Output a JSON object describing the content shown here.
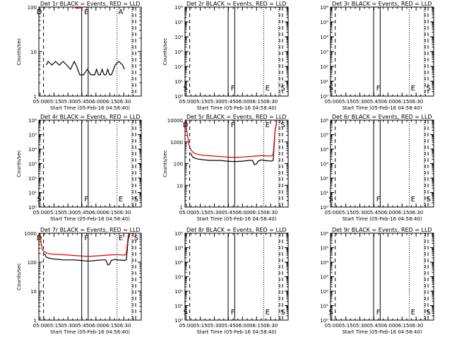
{
  "figure": {
    "time_labels": [
      "05:00",
      "05:15",
      "05:30",
      "05:45",
      "06:00",
      "06:15",
      "06:30"
    ],
    "xlabel": "Start Time (05-Feb-16 04:58:40)",
    "ylabel": "Counts/sec",
    "event_marker_letters": [
      "D",
      "F",
      "E",
      "S"
    ]
  },
  "chart_data": [
    {
      "type": "line",
      "id": "det1r",
      "title": "Det 1r BLACK = Events, RED = LLD",
      "ylabel": "Counts/sec",
      "xlabel": "Start Time (05-Feb-16 04:58:40)",
      "yscale": "log",
      "ylim": [
        1,
        100
      ],
      "xlim_minutes_after_start": [
        0,
        98
      ],
      "y_ticks": [
        "1",
        "10",
        "100"
      ],
      "marker_letters": [
        "D",
        "E",
        "A"
      ],
      "series": [
        {
          "name": "Events",
          "color": "#000000",
          "x": [
            8,
            10,
            14,
            18,
            22,
            26,
            30,
            34,
            38,
            40,
            44,
            48,
            52,
            56,
            60,
            62,
            64,
            66,
            68,
            70,
            72,
            74,
            76,
            78,
            82,
            86,
            90,
            92
          ],
          "y": [
            5,
            6,
            5,
            6,
            5,
            6,
            5,
            4,
            6,
            5,
            3,
            3,
            4,
            3,
            3,
            4,
            3,
            3,
            4,
            3,
            3,
            4,
            3,
            3,
            5,
            6,
            5,
            4
          ]
        },
        {
          "name": "LLD",
          "color": "#dd0000",
          "x": [
            38,
            40,
            44,
            48
          ],
          "y": [
            100,
            95,
            95,
            100
          ]
        }
      ]
    },
    {
      "type": "line",
      "id": "det2r",
      "title": "Det 2r BLACK = Events, RED = LLD",
      "ylabel": "Counts/sec",
      "xlabel": "Start Time (05-Feb-16 04:58:40)",
      "yscale": "log",
      "ylim": [
        1,
        1000000
      ],
      "y_ticks": [
        "10⁰",
        "10¹",
        "10²",
        "10³",
        "10⁴",
        "10⁵",
        "10⁶"
      ],
      "marker_letters": [
        "S",
        "F",
        "E",
        "S"
      ],
      "series": []
    },
    {
      "type": "line",
      "id": "det3r",
      "title": "Det 3r BLACK = Events, RED = LLD",
      "ylabel": "",
      "xlabel": "Start Time (05-Feb-16 04:58:40)",
      "yscale": "log",
      "ylim": [
        1,
        1000000
      ],
      "y_ticks": [
        "10⁰",
        "10¹",
        "10²",
        "10³",
        "10⁴",
        "10⁵",
        "10⁶"
      ],
      "marker_letters": [
        "S",
        "F",
        "E",
        "S"
      ],
      "series": []
    },
    {
      "type": "line",
      "id": "det4r",
      "title": "Det 4r BLACK = Events, RED = LLD",
      "ylabel": "Counts/sec",
      "xlabel": "Start Time (05-Feb-16 04:58:40)",
      "yscale": "log",
      "ylim": [
        1,
        1000000
      ],
      "y_ticks": [
        "10⁰",
        "10¹",
        "10²",
        "10³",
        "10⁴",
        "10⁵",
        "10⁶"
      ],
      "marker_letters": [
        "S",
        "F",
        "E",
        "S"
      ],
      "series": []
    },
    {
      "type": "line",
      "id": "det5r",
      "title": "Det 5r BLACK = Events, RED = LLD",
      "ylabel": "Counts/sec",
      "xlabel": "Start Time (05-Feb-16 04:58:40)",
      "yscale": "log",
      "ylim": [
        1,
        10000
      ],
      "y_ticks": [
        "1",
        "10",
        "100",
        "1000",
        "10000"
      ],
      "marker_letters": [
        "D",
        "F",
        "E",
        "S"
      ],
      "series": [
        {
          "name": "Events",
          "color": "#000000",
          "x": [
            6,
            8,
            10,
            14,
            20,
            26,
            32,
            38,
            44,
            50,
            56,
            62,
            68,
            72,
            74,
            76,
            78,
            80,
            82,
            84,
            88,
            92,
            94,
            96,
            98
          ],
          "y": [
            300,
            200,
            180,
            160,
            150,
            140,
            140,
            140,
            130,
            125,
            125,
            130,
            140,
            140,
            90,
            95,
            130,
            140,
            150,
            140,
            135,
            130,
            140,
            3000,
            10000
          ]
        },
        {
          "name": "LLD",
          "color": "#dd0000",
          "x": [
            0,
            2,
            4,
            6,
            8,
            10,
            14,
            20,
            26,
            32,
            38,
            44,
            50,
            56,
            62,
            68,
            74,
            80,
            84,
            88,
            92,
            94,
            96,
            98
          ],
          "y": [
            10000,
            3000,
            800,
            450,
            350,
            300,
            260,
            240,
            230,
            220,
            210,
            200,
            195,
            195,
            200,
            210,
            220,
            230,
            230,
            225,
            220,
            260,
            3000,
            10000
          ]
        }
      ]
    },
    {
      "type": "line",
      "id": "det6r",
      "title": "Det 6r BLACK = Events, RED = LLD",
      "ylabel": "",
      "xlabel": "Start Time (05-Feb-16 04:58:40)",
      "yscale": "log",
      "ylim": [
        1,
        1000000
      ],
      "y_ticks": [
        "10⁰",
        "10¹",
        "10²",
        "10³",
        "10⁴",
        "10⁵",
        "10⁶"
      ],
      "marker_letters": [
        "S",
        "F",
        "E",
        "S"
      ],
      "series": []
    },
    {
      "type": "line",
      "id": "det7r",
      "title": "Det 7r BLACK = Events, RED = LLD",
      "ylabel": "Counts/sec",
      "xlabel": "Start Time (05-Feb-16 04:58:40)",
      "yscale": "log",
      "ylim": [
        1,
        1000
      ],
      "y_ticks": [
        "1",
        "10",
        "100",
        "1000"
      ],
      "marker_letters": [
        "D",
        "F",
        "E",
        "S"
      ],
      "series": [
        {
          "name": "Events",
          "color": "#000000",
          "x": [
            6,
            8,
            10,
            14,
            20,
            26,
            32,
            38,
            44,
            50,
            56,
            62,
            68,
            72,
            74,
            76,
            78,
            80,
            82,
            84,
            88,
            92,
            94,
            96,
            98
          ],
          "y": [
            200,
            150,
            140,
            130,
            125,
            120,
            120,
            120,
            115,
            110,
            110,
            115,
            120,
            120,
            80,
            85,
            115,
            120,
            125,
            120,
            118,
            115,
            120,
            600,
            1000
          ]
        },
        {
          "name": "LLD",
          "color": "#dd0000",
          "x": [
            0,
            1,
            2,
            3,
            4,
            6,
            8,
            10,
            14,
            20,
            26,
            32,
            38,
            44,
            50,
            56,
            62,
            68,
            74,
            80,
            84,
            88,
            92,
            94,
            96,
            98
          ],
          "y": [
            1000,
            900,
            600,
            350,
            260,
            230,
            210,
            200,
            190,
            185,
            180,
            175,
            170,
            165,
            160,
            160,
            165,
            170,
            175,
            180,
            180,
            178,
            175,
            200,
            800,
            1000
          ]
        }
      ]
    },
    {
      "type": "line",
      "id": "det8r",
      "title": "Det 8r BLACK = Events, RED = LLD",
      "ylabel": "",
      "xlabel": "Start Time (05-Feb-16 04:58:40)",
      "yscale": "log",
      "ylim": [
        1,
        1000000
      ],
      "y_ticks": [
        "10⁰",
        "10¹",
        "10²",
        "10³",
        "10⁴",
        "10⁵",
        "10⁶"
      ],
      "marker_letters": [
        "S",
        "F",
        "E",
        "S"
      ],
      "series": []
    },
    {
      "type": "line",
      "id": "det9r",
      "title": "Det 9r BLACK = Events, RED = LLD",
      "ylabel": "",
      "xlabel": "Start Time (05-Feb-16 04:58:40)",
      "yscale": "log",
      "ylim": [
        1,
        1000000
      ],
      "y_ticks": [
        "10⁰",
        "10¹",
        "10²",
        "10³",
        "10⁴",
        "10⁵",
        "10⁶"
      ],
      "marker_letters": [
        "S",
        "F",
        "E",
        "S"
      ],
      "series": []
    }
  ],
  "vertical_markers": {
    "dashed_minutes": [
      5,
      104
    ],
    "solid_minutes": [
      46,
      53
    ],
    "dotted_minutes": [
      84,
      100
    ],
    "dashed2_minutes": [
      101
    ]
  }
}
